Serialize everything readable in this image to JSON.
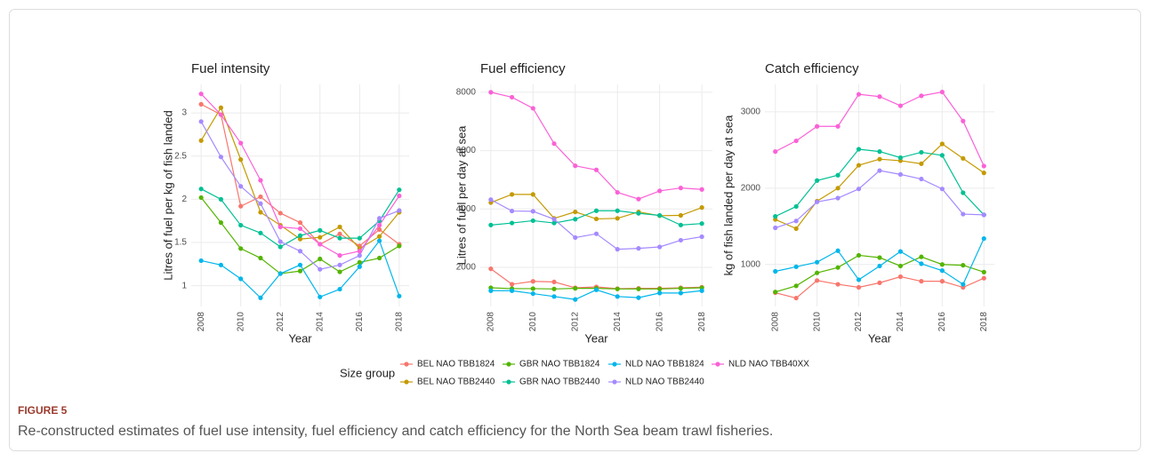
{
  "chart_data": [
    {
      "type": "line",
      "title": "Fuel intensity",
      "x_label": "Year",
      "y_label": "Litres of fuel per kg of fish landed",
      "x": [
        2008,
        2009,
        2010,
        2011,
        2012,
        2013,
        2014,
        2015,
        2016,
        2017,
        2018
      ],
      "xlim": [
        2007.5,
        2018.5
      ],
      "xticks": [
        2008,
        2010,
        2012,
        2014,
        2016,
        2018
      ],
      "ylim": [
        0.76,
        3.33
      ],
      "yticks": [
        1.0,
        1.5,
        2.0,
        2.5,
        3.0
      ],
      "grid": true,
      "series": [
        {
          "name": "BEL NAO TBB1824",
          "color": "#F8766D",
          "values": [
            3.1,
            2.98,
            1.92,
            2.03,
            1.84,
            1.73,
            1.48,
            1.6,
            1.46,
            1.65,
            1.48
          ]
        },
        {
          "name": "BEL NAO TBB2440",
          "color": "#C49A00",
          "values": [
            2.68,
            3.06,
            2.46,
            1.85,
            1.7,
            1.54,
            1.56,
            1.68,
            1.43,
            1.57,
            1.85
          ]
        },
        {
          "name": "GBR NAO TBB1824",
          "color": "#53B400",
          "values": [
            2.02,
            1.73,
            1.43,
            1.32,
            1.14,
            1.17,
            1.31,
            1.16,
            1.27,
            1.32,
            1.46
          ]
        },
        {
          "name": "GBR NAO TBB2440",
          "color": "#00C094",
          "values": [
            2.12,
            2.0,
            1.7,
            1.61,
            1.45,
            1.58,
            1.64,
            1.55,
            1.55,
            1.75,
            2.11
          ]
        },
        {
          "name": "NLD NAO TBB1824",
          "color": "#00B6EB",
          "values": [
            1.29,
            1.24,
            1.08,
            0.86,
            1.14,
            1.24,
            0.87,
            0.96,
            1.22,
            1.52,
            0.88
          ]
        },
        {
          "name": "NLD NAO TBB2440",
          "color": "#A58AFF",
          "values": [
            2.9,
            2.49,
            2.15,
            1.95,
            1.51,
            1.4,
            1.19,
            1.24,
            1.35,
            1.78,
            1.87
          ]
        },
        {
          "name": "NLD NAO TBB40XX",
          "color": "#FB61D7",
          "values": [
            3.22,
            2.98,
            2.65,
            2.22,
            1.68,
            1.66,
            1.48,
            1.35,
            1.4,
            1.7,
            2.04
          ]
        }
      ]
    },
    {
      "type": "line",
      "title": "Fuel efficiency",
      "x_label": "Year",
      "y_label": "Litres of fuel per day at sea",
      "x": [
        2008,
        2009,
        2010,
        2011,
        2012,
        2013,
        2014,
        2015,
        2016,
        2017,
        2018
      ],
      "xlim": [
        2007.5,
        2018.5
      ],
      "xticks": [
        2008,
        2010,
        2012,
        2014,
        2016,
        2018
      ],
      "ylim": [
        660,
        8270
      ],
      "yticks": [
        2000,
        4000,
        6000,
        8000
      ],
      "grid": true,
      "series": [
        {
          "name": "BEL NAO TBB1824",
          "color": "#F8766D",
          "values": [
            1950,
            1420,
            1520,
            1500,
            1300,
            1330,
            1270,
            1280,
            1280,
            1300,
            1320
          ]
        },
        {
          "name": "BEL NAO TBB2440",
          "color": "#C49A00",
          "values": [
            4220,
            4500,
            4500,
            3680,
            3900,
            3660,
            3680,
            3900,
            3770,
            3780,
            4050
          ]
        },
        {
          "name": "GBR NAO TBB1824",
          "color": "#53B400",
          "values": [
            1300,
            1270,
            1270,
            1260,
            1280,
            1280,
            1260,
            1260,
            1260,
            1280,
            1300
          ]
        },
        {
          "name": "GBR NAO TBB2440",
          "color": "#00C094",
          "values": [
            3450,
            3520,
            3600,
            3520,
            3650,
            3940,
            3940,
            3850,
            3780,
            3450,
            3500
          ]
        },
        {
          "name": "NLD NAO TBB1824",
          "color": "#00B6EB",
          "values": [
            1200,
            1200,
            1100,
            1000,
            900,
            1230,
            1000,
            960,
            1120,
            1120,
            1200
          ]
        },
        {
          "name": "NLD NAO TBB2440",
          "color": "#A58AFF",
          "values": [
            4320,
            3930,
            3920,
            3650,
            3020,
            3150,
            2620,
            2650,
            2700,
            2930,
            3050
          ]
        },
        {
          "name": "NLD NAO TBB40XX",
          "color": "#FB61D7",
          "values": [
            8000,
            7830,
            7450,
            6240,
            5480,
            5340,
            4570,
            4340,
            4620,
            4720,
            4670
          ]
        }
      ]
    },
    {
      "type": "line",
      "title": "Catch efficiency",
      "x_label": "Year",
      "y_label": "kg of fish landed per day at sea",
      "x": [
        2008,
        2009,
        2010,
        2011,
        2012,
        2013,
        2014,
        2015,
        2016,
        2017,
        2018
      ],
      "xlim": [
        2007.5,
        2018.5
      ],
      "xticks": [
        2008,
        2010,
        2012,
        2014,
        2016,
        2018
      ],
      "ylim": [
        450,
        3360
      ],
      "yticks": [
        1000,
        2000,
        3000
      ],
      "grid": true,
      "series": [
        {
          "name": "BEL NAO TBB1824",
          "color": "#F8766D",
          "values": [
            630,
            560,
            790,
            740,
            700,
            760,
            840,
            780,
            780,
            700,
            820
          ]
        },
        {
          "name": "BEL NAO TBB2440",
          "color": "#C49A00",
          "values": [
            1590,
            1470,
            1830,
            2000,
            2300,
            2380,
            2360,
            2320,
            2580,
            2390,
            2200
          ]
        },
        {
          "name": "GBR NAO TBB1824",
          "color": "#53B400",
          "values": [
            640,
            720,
            890,
            960,
            1120,
            1090,
            980,
            1100,
            1000,
            990,
            900
          ]
        },
        {
          "name": "GBR NAO TBB2440",
          "color": "#00C094",
          "values": [
            1630,
            1760,
            2100,
            2170,
            2510,
            2480,
            2400,
            2470,
            2430,
            1940,
            1650
          ]
        },
        {
          "name": "NLD NAO TBB1824",
          "color": "#00B6EB",
          "values": [
            910,
            970,
            1030,
            1180,
            800,
            980,
            1170,
            1010,
            920,
            740,
            1340
          ]
        },
        {
          "name": "NLD NAO TBB2440",
          "color": "#A58AFF",
          "values": [
            1480,
            1570,
            1820,
            1870,
            1990,
            2230,
            2180,
            2120,
            1990,
            1660,
            1650
          ]
        },
        {
          "name": "NLD NAO TBB40XX",
          "color": "#FB61D7",
          "values": [
            2480,
            2620,
            2810,
            2810,
            3230,
            3200,
            3080,
            3210,
            3260,
            2880,
            2290
          ]
        }
      ]
    }
  ],
  "legend": {
    "title": "Size group"
  },
  "figure": {
    "label": "FIGURE 5",
    "caption": "Re-constructed estimates of fuel use intensity, fuel efficiency and catch efficiency for the North Sea beam trawl fisheries."
  }
}
